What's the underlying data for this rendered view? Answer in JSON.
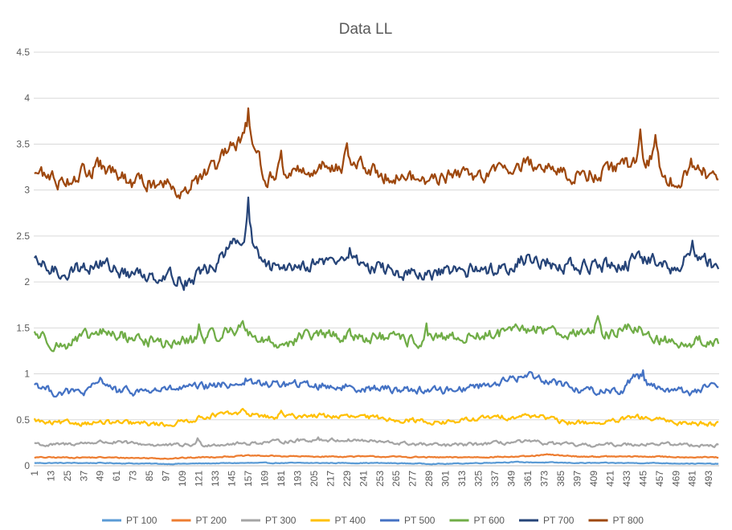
{
  "chart_data": {
    "type": "line",
    "title": "Data LL",
    "xlabel": "",
    "ylabel": "",
    "ylim": [
      0,
      4.5
    ],
    "yticks": [
      "0",
      "0.5",
      "1",
      "1.5",
      "2",
      "2.5",
      "3",
      "3.5",
      "4",
      "4.5"
    ],
    "grid": true,
    "legend": "bottom",
    "x_count": 500,
    "x_tick_labels": [
      "1",
      "13",
      "25",
      "37",
      "49",
      "61",
      "73",
      "85",
      "97",
      "109",
      "121",
      "133",
      "145",
      "157",
      "169",
      "181",
      "193",
      "205",
      "217",
      "229",
      "241",
      "253",
      "265",
      "277",
      "289",
      "301",
      "313",
      "325",
      "337",
      "349",
      "361",
      "373",
      "385",
      "397",
      "409",
      "421",
      "433",
      "445",
      "457",
      "469",
      "481",
      "493"
    ],
    "series": [
      {
        "name": "PT 100",
        "color": "#5b9bd5",
        "anchors": [
          [
            1,
            0.03
          ],
          [
            50,
            0.03
          ],
          [
            100,
            0.02
          ],
          [
            150,
            0.03
          ],
          [
            200,
            0.03
          ],
          [
            250,
            0.03
          ],
          [
            300,
            0.02
          ],
          [
            350,
            0.04
          ],
          [
            400,
            0.03
          ],
          [
            450,
            0.03
          ],
          [
            500,
            0.02
          ]
        ],
        "noise": 0.004,
        "spikes": []
      },
      {
        "name": "PT 200",
        "color": "#ed7d31",
        "anchors": [
          [
            1,
            0.09
          ],
          [
            50,
            0.09
          ],
          [
            100,
            0.08
          ],
          [
            140,
            0.1
          ],
          [
            160,
            0.11
          ],
          [
            200,
            0.1
          ],
          [
            250,
            0.1
          ],
          [
            300,
            0.09
          ],
          [
            360,
            0.1
          ],
          [
            375,
            0.12
          ],
          [
            400,
            0.1
          ],
          [
            450,
            0.1
          ],
          [
            500,
            0.09
          ]
        ],
        "noise": 0.006,
        "spikes": []
      },
      {
        "name": "PT 300",
        "color": "#a5a5a5",
        "anchors": [
          [
            1,
            0.25
          ],
          [
            10,
            0.22
          ],
          [
            50,
            0.26
          ],
          [
            100,
            0.22
          ],
          [
            150,
            0.24
          ],
          [
            200,
            0.28
          ],
          [
            235,
            0.28
          ],
          [
            260,
            0.25
          ],
          [
            300,
            0.22
          ],
          [
            360,
            0.26
          ],
          [
            400,
            0.22
          ],
          [
            450,
            0.24
          ],
          [
            500,
            0.22
          ]
        ],
        "noise": 0.018,
        "spikes": [
          [
            120,
            0.3
          ],
          [
            208,
            0.31
          ]
        ]
      },
      {
        "name": "PT 400",
        "color": "#ffc000",
        "anchors": [
          [
            1,
            0.5
          ],
          [
            10,
            0.46
          ],
          [
            50,
            0.47
          ],
          [
            100,
            0.45
          ],
          [
            130,
            0.55
          ],
          [
            155,
            0.57
          ],
          [
            175,
            0.52
          ],
          [
            200,
            0.55
          ],
          [
            250,
            0.52
          ],
          [
            300,
            0.47
          ],
          [
            330,
            0.52
          ],
          [
            370,
            0.55
          ],
          [
            385,
            0.47
          ],
          [
            420,
            0.47
          ],
          [
            440,
            0.53
          ],
          [
            470,
            0.47
          ],
          [
            500,
            0.46
          ]
        ],
        "noise": 0.025,
        "spikes": [
          [
            153,
            0.62
          ],
          [
            181,
            0.6
          ]
        ]
      },
      {
        "name": "PT 500",
        "color": "#4472c4",
        "anchors": [
          [
            1,
            0.9
          ],
          [
            15,
            0.8
          ],
          [
            40,
            0.8
          ],
          [
            50,
            0.94
          ],
          [
            62,
            0.8
          ],
          [
            100,
            0.83
          ],
          [
            120,
            0.85
          ],
          [
            150,
            0.9
          ],
          [
            200,
            0.88
          ],
          [
            250,
            0.84
          ],
          [
            300,
            0.82
          ],
          [
            330,
            0.88
          ],
          [
            361,
            0.98
          ],
          [
            380,
            0.92
          ],
          [
            400,
            0.82
          ],
          [
            430,
            0.82
          ],
          [
            440,
            1.0
          ],
          [
            455,
            0.85
          ],
          [
            480,
            0.8
          ],
          [
            495,
            0.88
          ],
          [
            500,
            0.8
          ]
        ],
        "noise": 0.04,
        "spikes": [
          [
            155,
            0.95
          ],
          [
            363,
            1.02
          ],
          [
            445,
            1.04
          ]
        ]
      },
      {
        "name": "PT 600",
        "color": "#70ad47",
        "anchors": [
          [
            1,
            1.45
          ],
          [
            20,
            1.3
          ],
          [
            50,
            1.45
          ],
          [
            100,
            1.32
          ],
          [
            135,
            1.42
          ],
          [
            152,
            1.52
          ],
          [
            165,
            1.38
          ],
          [
            180,
            1.32
          ],
          [
            200,
            1.42
          ],
          [
            250,
            1.4
          ],
          [
            280,
            1.35
          ],
          [
            300,
            1.38
          ],
          [
            350,
            1.45
          ],
          [
            365,
            1.5
          ],
          [
            390,
            1.45
          ],
          [
            420,
            1.45
          ],
          [
            440,
            1.5
          ],
          [
            460,
            1.35
          ],
          [
            500,
            1.35
          ]
        ],
        "noise": 0.06,
        "spikes": [
          [
            121,
            1.54
          ],
          [
            287,
            1.55
          ],
          [
            412,
            1.63
          ]
        ]
      },
      {
        "name": "PT 700",
        "color": "#264478",
        "anchors": [
          [
            1,
            2.2
          ],
          [
            20,
            2.1
          ],
          [
            50,
            2.2
          ],
          [
            70,
            2.08
          ],
          [
            100,
            2.08
          ],
          [
            110,
            2.0
          ],
          [
            130,
            2.15
          ],
          [
            145,
            2.4
          ],
          [
            157,
            2.48
          ],
          [
            170,
            2.15
          ],
          [
            200,
            2.2
          ],
          [
            230,
            2.25
          ],
          [
            250,
            2.15
          ],
          [
            285,
            2.05
          ],
          [
            300,
            2.1
          ],
          [
            340,
            2.15
          ],
          [
            360,
            2.25
          ],
          [
            400,
            2.15
          ],
          [
            430,
            2.2
          ],
          [
            450,
            2.25
          ],
          [
            470,
            2.1
          ],
          [
            480,
            2.35
          ],
          [
            500,
            2.15
          ]
        ],
        "noise": 0.07,
        "spikes": [
          [
            157,
            2.92
          ],
          [
            231,
            2.37
          ],
          [
            481,
            2.45
          ]
        ]
      },
      {
        "name": "PT 800",
        "color": "#9e480e",
        "anchors": [
          [
            1,
            3.2
          ],
          [
            20,
            3.1
          ],
          [
            50,
            3.25
          ],
          [
            70,
            3.08
          ],
          [
            100,
            3.08
          ],
          [
            110,
            3.0
          ],
          [
            130,
            3.2
          ],
          [
            145,
            3.45
          ],
          [
            157,
            3.6
          ],
          [
            170,
            3.15
          ],
          [
            200,
            3.22
          ],
          [
            230,
            3.3
          ],
          [
            250,
            3.2
          ],
          [
            285,
            3.1
          ],
          [
            300,
            3.15
          ],
          [
            340,
            3.2
          ],
          [
            360,
            3.3
          ],
          [
            400,
            3.15
          ],
          [
            430,
            3.25
          ],
          [
            450,
            3.35
          ],
          [
            470,
            3.05
          ],
          [
            480,
            3.3
          ],
          [
            500,
            3.1
          ]
        ],
        "noise": 0.08,
        "spikes": [
          [
            157,
            3.89
          ],
          [
            181,
            3.43
          ],
          [
            229,
            3.51
          ],
          [
            443,
            3.66
          ],
          [
            454,
            3.6
          ]
        ]
      }
    ]
  }
}
